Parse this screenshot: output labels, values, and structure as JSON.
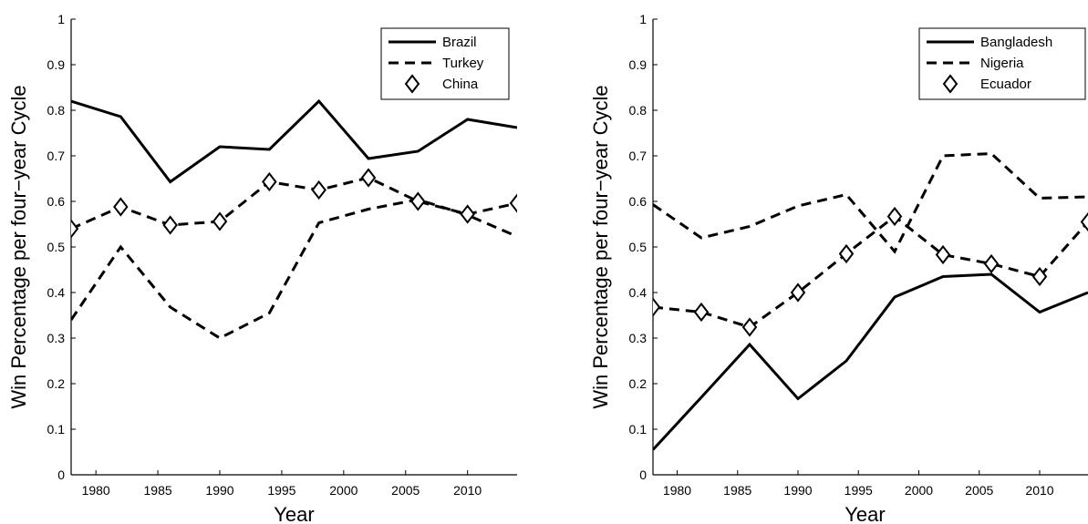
{
  "chart_data": [
    {
      "type": "line",
      "xlabel": "Year",
      "ylabel": "Win Percentage per four−year Cycle",
      "xlim": [
        1978,
        2014
      ],
      "ylim": [
        0,
        1
      ],
      "xticks": [
        "1980",
        "1985",
        "1990",
        "1995",
        "2000",
        "2005",
        "2010"
      ],
      "yticks": [
        "0",
        "0.1",
        "0.2",
        "0.3",
        "0.4",
        "0.5",
        "0.6",
        "0.7",
        "0.8",
        "0.9",
        "1"
      ],
      "x": [
        1978,
        1982,
        1986,
        1990,
        1994,
        1998,
        2002,
        2006,
        2010,
        2014
      ],
      "legend_position": "top-right",
      "series": [
        {
          "name": "Brazil",
          "style": "solid",
          "values": [
            0.82,
            0.786,
            0.643,
            0.72,
            0.714,
            0.82,
            0.694,
            0.71,
            0.78,
            0.762
          ]
        },
        {
          "name": "Turkey",
          "style": "dashed",
          "values": [
            0.34,
            0.5,
            0.368,
            0.3,
            0.355,
            0.553,
            0.583,
            0.604,
            0.57,
            0.523
          ]
        },
        {
          "name": "China",
          "style": "marker",
          "values": [
            0.54,
            0.588,
            0.548,
            0.556,
            0.643,
            0.625,
            0.652,
            0.6,
            0.572,
            0.596
          ]
        }
      ]
    },
    {
      "type": "line",
      "xlabel": "Year",
      "ylabel": "Win Percentage per four−year Cycle",
      "xlim": [
        1978,
        2014
      ],
      "ylim": [
        0,
        1
      ],
      "xticks": [
        "1980",
        "1985",
        "1990",
        "1995",
        "2000",
        "2005",
        "2010"
      ],
      "yticks": [
        "0",
        "0.1",
        "0.2",
        "0.3",
        "0.4",
        "0.5",
        "0.6",
        "0.7",
        "0.8",
        "0.9",
        "1"
      ],
      "x": [
        1978,
        1982,
        1986,
        1990,
        1994,
        1998,
        2002,
        2006,
        2010,
        2014
      ],
      "legend_position": "top-right",
      "series": [
        {
          "name": "Bangladesh",
          "style": "solid",
          "values": [
            0.055,
            0.17,
            0.286,
            0.167,
            0.25,
            0.39,
            0.435,
            0.44,
            0.357,
            0.4
          ]
        },
        {
          "name": "Nigeria",
          "style": "dashed",
          "values": [
            0.593,
            0.52,
            0.545,
            0.59,
            0.615,
            0.49,
            0.7,
            0.705,
            0.607,
            0.61
          ]
        },
        {
          "name": "Ecuador",
          "style": "marker",
          "values": [
            0.368,
            0.357,
            0.324,
            0.4,
            0.485,
            0.567,
            0.483,
            0.463,
            0.435,
            0.555
          ]
        }
      ]
    }
  ]
}
